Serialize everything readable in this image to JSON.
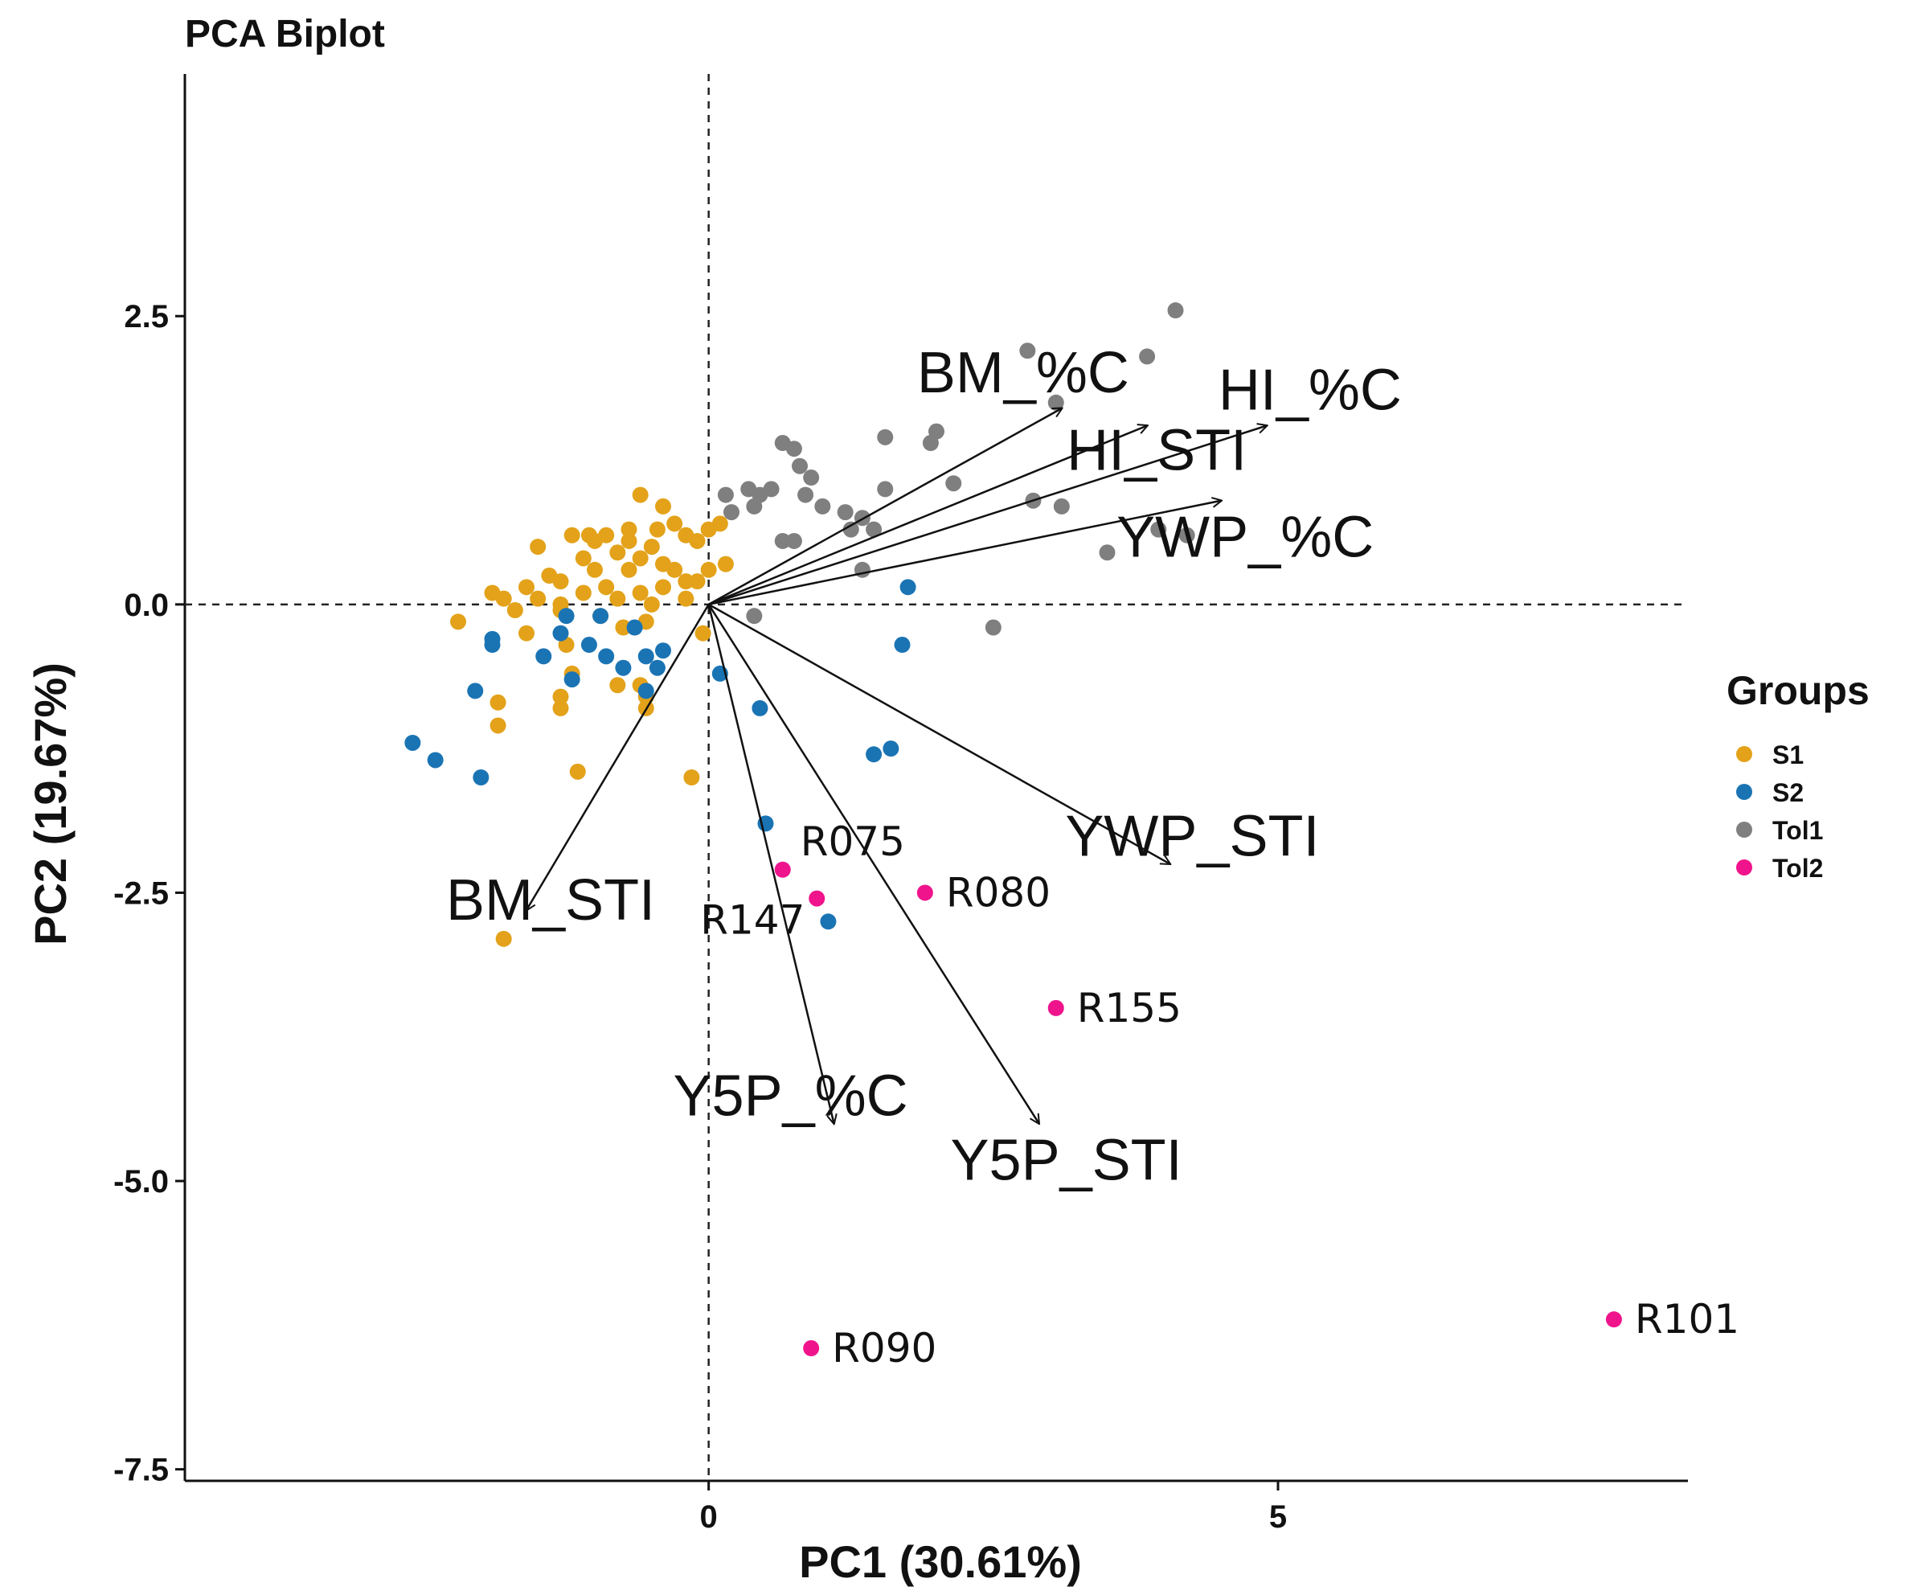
{
  "chart_data": {
    "type": "scatter",
    "title": "PCA Biplot",
    "xlabel": "PC1 (30.61%)",
    "ylabel": "PC2 (19.67%)",
    "xlim": [
      -4.6,
      8.6
    ],
    "ylim": [
      -7.6,
      4.6
    ],
    "x_ticks": [
      0,
      5
    ],
    "x_tick_labels": [
      "0",
      "5"
    ],
    "y_ticks": [
      2.5,
      0,
      -2.5,
      -5,
      -7.5
    ],
    "y_tick_labels": [
      "2.5",
      "0.0",
      "-2.5",
      "-5.0",
      "-7.5"
    ],
    "reference_lines": {
      "x": 0,
      "y": 0,
      "style": "dashed"
    },
    "grid": false,
    "legend": {
      "title": "Groups",
      "position": "right"
    },
    "series": [
      {
        "name": "S1",
        "color": "#E3A21A",
        "points": [
          [
            -1.5,
            0.5
          ],
          [
            -1.2,
            0.6
          ],
          [
            -1.0,
            0.55
          ],
          [
            -0.9,
            0.6
          ],
          [
            -0.7,
            0.55
          ],
          [
            -0.6,
            0.95
          ],
          [
            -0.4,
            0.85
          ],
          [
            -0.3,
            0.7
          ],
          [
            -0.2,
            0.6
          ],
          [
            -0.1,
            0.55
          ],
          [
            0.1,
            0.7
          ],
          [
            0.0,
            0.65
          ],
          [
            -1.4,
            0.25
          ],
          [
            -1.3,
            0.2
          ],
          [
            -1.1,
            0.4
          ],
          [
            -1.0,
            0.3
          ],
          [
            -0.8,
            0.45
          ],
          [
            -0.7,
            0.3
          ],
          [
            -0.6,
            0.4
          ],
          [
            -0.5,
            0.5
          ],
          [
            -0.4,
            0.35
          ],
          [
            -0.3,
            0.3
          ],
          [
            -0.2,
            0.2
          ],
          [
            0.0,
            0.3
          ],
          [
            0.15,
            0.35
          ],
          [
            -1.6,
            0.15
          ],
          [
            -1.5,
            0.05
          ],
          [
            -1.3,
            0.0
          ],
          [
            -1.1,
            0.1
          ],
          [
            -0.9,
            0.15
          ],
          [
            -0.8,
            0.05
          ],
          [
            -0.6,
            0.1
          ],
          [
            -0.5,
            0.0
          ],
          [
            -0.4,
            0.15
          ],
          [
            -0.2,
            0.05
          ],
          [
            -0.1,
            0.2
          ],
          [
            -1.8,
            0.05
          ],
          [
            -1.7,
            -0.05
          ],
          [
            -1.9,
            0.1
          ],
          [
            -2.2,
            -0.15
          ],
          [
            -1.6,
            -0.25
          ],
          [
            -1.3,
            -0.05
          ],
          [
            -1.25,
            -0.35
          ],
          [
            -0.95,
            -0.1
          ],
          [
            -0.75,
            -0.2
          ],
          [
            -0.55,
            -0.15
          ],
          [
            -0.05,
            -0.25
          ],
          [
            -1.2,
            -0.6
          ],
          [
            -1.3,
            -0.8
          ],
          [
            -1.3,
            -0.9
          ],
          [
            -0.8,
            -0.7
          ],
          [
            -0.6,
            -0.7
          ],
          [
            -0.55,
            -0.8
          ],
          [
            -0.55,
            -0.9
          ],
          [
            -1.85,
            -0.85
          ],
          [
            -1.85,
            -1.05
          ],
          [
            -1.15,
            -1.45
          ],
          [
            -0.15,
            -1.5
          ],
          [
            -1.8,
            -2.9
          ],
          [
            -0.7,
            0.65
          ],
          [
            -0.45,
            0.65
          ],
          [
            -1.05,
            0.6
          ]
        ]
      },
      {
        "name": "S2",
        "color": "#1A74B4",
        "points": [
          [
            -2.6,
            -1.2
          ],
          [
            -2.4,
            -1.35
          ],
          [
            -2.0,
            -1.5
          ],
          [
            -2.05,
            -0.75
          ],
          [
            -1.9,
            -0.3
          ],
          [
            -1.9,
            -0.35
          ],
          [
            -1.45,
            -0.45
          ],
          [
            -1.3,
            -0.25
          ],
          [
            -1.25,
            -0.1
          ],
          [
            -1.2,
            -0.65
          ],
          [
            -1.05,
            -0.35
          ],
          [
            -0.95,
            -0.1
          ],
          [
            -0.9,
            -0.45
          ],
          [
            -0.75,
            -0.55
          ],
          [
            -0.65,
            -0.2
          ],
          [
            -0.55,
            -0.45
          ],
          [
            -0.45,
            -0.55
          ],
          [
            -0.55,
            -0.75
          ],
          [
            -0.4,
            -0.4
          ],
          [
            0.1,
            -0.6
          ],
          [
            0.45,
            -0.9
          ],
          [
            1.45,
            -1.3
          ],
          [
            1.6,
            -1.25
          ],
          [
            1.7,
            -0.35
          ],
          [
            1.75,
            0.15
          ],
          [
            0.5,
            -1.9
          ],
          [
            1.05,
            -2.75
          ]
        ]
      },
      {
        "name": "Tol1",
        "color": "#7F7F7F",
        "points": [
          [
            0.2,
            0.8
          ],
          [
            0.35,
            1.0
          ],
          [
            0.45,
            0.95
          ],
          [
            0.55,
            1.0
          ],
          [
            0.65,
            1.4
          ],
          [
            0.75,
            1.35
          ],
          [
            0.8,
            1.2
          ],
          [
            0.85,
            0.95
          ],
          [
            0.9,
            1.1
          ],
          [
            1.0,
            0.85
          ],
          [
            1.2,
            0.8
          ],
          [
            1.25,
            0.65
          ],
          [
            1.35,
            0.75
          ],
          [
            1.45,
            0.65
          ],
          [
            0.4,
            0.85
          ],
          [
            0.65,
            0.55
          ],
          [
            0.75,
            0.55
          ],
          [
            1.35,
            0.3
          ],
          [
            1.55,
            1.0
          ],
          [
            0.15,
            0.95
          ],
          [
            1.55,
            1.45
          ],
          [
            1.95,
            1.4
          ],
          [
            2.0,
            1.5
          ],
          [
            2.15,
            1.05
          ],
          [
            2.8,
            2.2
          ],
          [
            3.05,
            1.75
          ],
          [
            3.1,
            0.85
          ],
          [
            2.85,
            0.9
          ],
          [
            3.5,
            0.45
          ],
          [
            3.85,
            2.15
          ],
          [
            4.1,
            2.55
          ],
          [
            3.95,
            0.65
          ],
          [
            4.2,
            0.6
          ],
          [
            2.5,
            -0.2
          ],
          [
            0.4,
            -0.1
          ]
        ]
      },
      {
        "name": "Tol2",
        "color": "#F0148C",
        "points": [
          [
            0.65,
            -2.3
          ],
          [
            0.95,
            -2.55
          ],
          [
            1.9,
            -2.5
          ],
          [
            3.05,
            -3.5
          ],
          [
            0.9,
            -6.45
          ],
          [
            7.95,
            -6.2
          ]
        ]
      }
    ],
    "point_labels": [
      {
        "text": "R075",
        "x": 0.65,
        "y": -2.3
      },
      {
        "text": "R147",
        "x": 0.95,
        "y": -2.55
      },
      {
        "text": "R080",
        "x": 1.9,
        "y": -2.5
      },
      {
        "text": "R155",
        "x": 3.05,
        "y": -3.5
      },
      {
        "text": "R090",
        "x": 0.9,
        "y": -6.45
      },
      {
        "text": "R101",
        "x": 7.95,
        "y": -6.2
      }
    ],
    "loadings": [
      {
        "name": "BM_%C",
        "x": 3.1,
        "y": 1.7
      },
      {
        "name": "HI_%C",
        "x": 4.9,
        "y": 1.55
      },
      {
        "name": "HI_STI",
        "x": 3.85,
        "y": 1.55
      },
      {
        "name": "YWP_%C",
        "x": 4.5,
        "y": 0.9
      },
      {
        "name": "YWP_STI",
        "x": 4.05,
        "y": -2.25
      },
      {
        "name": "BM_STI",
        "x": -1.6,
        "y": -2.65
      },
      {
        "name": "Y5P_%C",
        "x": 1.1,
        "y": -4.5
      },
      {
        "name": "Y5P_STI",
        "x": 2.9,
        "y": -4.5
      }
    ]
  }
}
